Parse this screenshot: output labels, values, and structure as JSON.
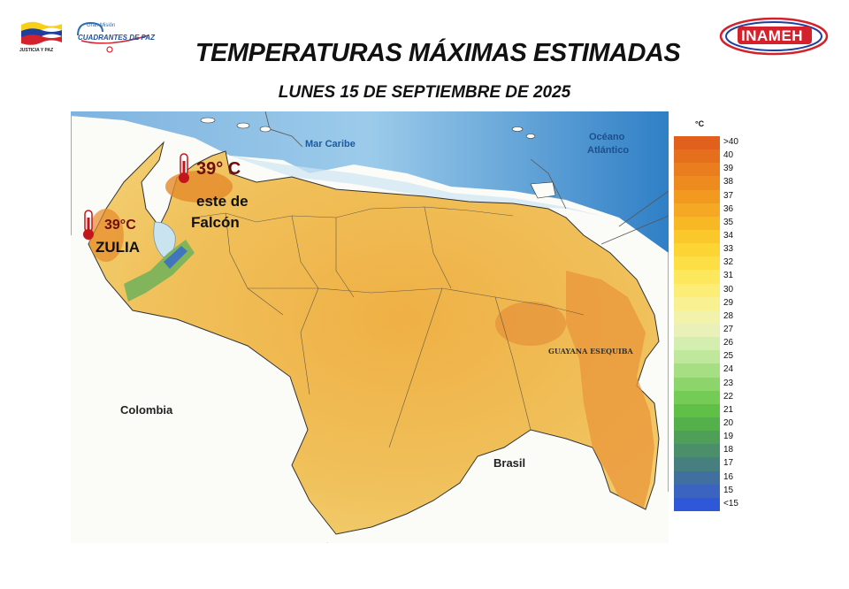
{
  "header": {
    "title": "TEMPERATURAS MÁXIMAS ESTIMADAS",
    "subtitle": "LUNES 15 DE SEPTIEMBRE DE 2025"
  },
  "logos": {
    "left_caption": "JUSTICIA Y PAZ",
    "center_line1": "Gran Misión",
    "center_line2": "CUADRANTES DE PAZ",
    "right_text": "INAMEH"
  },
  "map": {
    "labels": {
      "caribbean": "Mar Caribe",
      "atlantic_1": "Océano",
      "atlantic_2": "Atlántico",
      "colombia": "Colombia",
      "brasil": "Brasil",
      "guayana": "GUAYANA ESEQUIBA"
    },
    "hotspots": [
      {
        "temp": "39° C",
        "name_1": "este de",
        "name_2": "Falcón"
      },
      {
        "temp": "39°C",
        "name_1": "ZULIA"
      }
    ]
  },
  "legend": {
    "unit": "°C",
    "labels": [
      ">40",
      "40",
      "39",
      "38",
      "37",
      "36",
      "35",
      "34",
      "33",
      "32",
      "31",
      "30",
      "29",
      "28",
      "27",
      "26",
      "25",
      "24",
      "23",
      "22",
      "21",
      "20",
      "19",
      "18",
      "17",
      "16",
      "15",
      "<15"
    ],
    "colors": [
      "#e0601c",
      "#e56f1c",
      "#ea7d1d",
      "#ee8b1f",
      "#f29a20",
      "#f5a823",
      "#f8b826",
      "#fbc82b",
      "#fcd433",
      "#fddf45",
      "#fde75c",
      "#fced77",
      "#f9f091",
      "#f3f2aa",
      "#e9f1b8",
      "#d4eeb0",
      "#bfe89c",
      "#a6df83",
      "#8dd56b",
      "#74cb55",
      "#5fbf47",
      "#54b04b",
      "#4f9f58",
      "#4b8f6a",
      "#477f80",
      "#4170a0",
      "#3a64c0",
      "#2f58d8"
    ]
  }
}
